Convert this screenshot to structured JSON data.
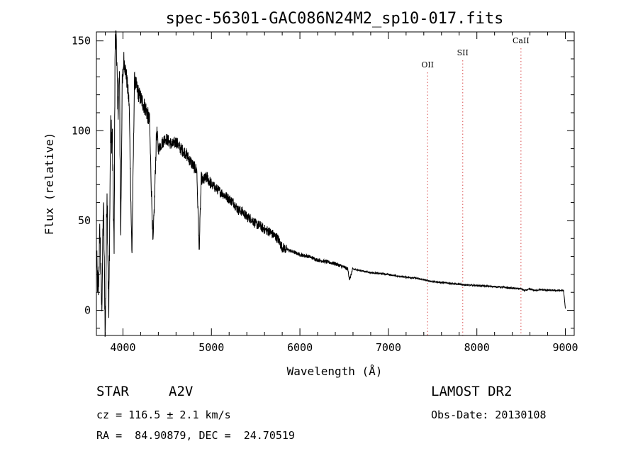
{
  "chart_data": {
    "type": "line",
    "title": "spec-56301-GAC086N24M2_sp10-017.fits",
    "xlabel": "Wavelength (Å)",
    "ylabel": "Flux (relative)",
    "xlim": [
      3700,
      9100
    ],
    "ylim": [
      -14,
      155
    ],
    "x_ticks": [
      "4000",
      "5000",
      "6000",
      "7000",
      "8000",
      "9000"
    ],
    "y_ticks": [
      "0",
      "50",
      "100",
      "150"
    ],
    "grid": false,
    "legend": "none",
    "series_color": "#000000",
    "marker_color": "#e06a6a",
    "spectral_lines": [
      {
        "name": "OII",
        "wavelength": 7443
      },
      {
        "name": "SII",
        "wavelength": 7840
      },
      {
        "name": "CaII",
        "wavelength": 8498
      }
    ],
    "spectrum_knots": [
      [
        3700,
        30
      ],
      [
        3720,
        8
      ],
      [
        3740,
        45
      ],
      [
        3760,
        0
      ],
      [
        3780,
        60
      ],
      [
        3800,
        -14
      ],
      [
        3820,
        70
      ],
      [
        3840,
        -5
      ],
      [
        3860,
        100
      ],
      [
        3880,
        95
      ],
      [
        3900,
        30
      ],
      [
        3910,
        145
      ],
      [
        3925,
        155
      ],
      [
        3940,
        110
      ],
      [
        3960,
        130
      ],
      [
        3975,
        40
      ],
      [
        3990,
        120
      ],
      [
        4010,
        140
      ],
      [
        4040,
        130
      ],
      [
        4070,
        115
      ],
      [
        4101,
        30
      ],
      [
        4130,
        128
      ],
      [
        4180,
        120
      ],
      [
        4220,
        116
      ],
      [
        4260,
        112
      ],
      [
        4300,
        105
      ],
      [
        4340,
        35
      ],
      [
        4380,
        100
      ],
      [
        4400,
        90
      ],
      [
        4440,
        93
      ],
      [
        4480,
        96
      ],
      [
        4520,
        94
      ],
      [
        4560,
        92
      ],
      [
        4600,
        94
      ],
      [
        4650,
        90
      ],
      [
        4700,
        88
      ],
      [
        4750,
        84
      ],
      [
        4800,
        80
      ],
      [
        4835,
        78
      ],
      [
        4861,
        32
      ],
      [
        4885,
        74
      ],
      [
        4900,
        72
      ],
      [
        4950,
        74
      ],
      [
        5000,
        70
      ],
      [
        5050,
        68
      ],
      [
        5100,
        66
      ],
      [
        5150,
        64
      ],
      [
        5200,
        62
      ],
      [
        5250,
        60
      ],
      [
        5300,
        56
      ],
      [
        5350,
        55
      ],
      [
        5400,
        52
      ],
      [
        5450,
        51
      ],
      [
        5500,
        48
      ],
      [
        5550,
        47
      ],
      [
        5600,
        45
      ],
      [
        5650,
        44
      ],
      [
        5700,
        42
      ],
      [
        5750,
        40
      ],
      [
        5800,
        35
      ],
      [
        5850,
        34
      ],
      [
        5900,
        33
      ],
      [
        6000,
        31
      ],
      [
        6100,
        30
      ],
      [
        6200,
        28
      ],
      [
        6300,
        27
      ],
      [
        6400,
        26
      ],
      [
        6500,
        24
      ],
      [
        6540,
        23
      ],
      [
        6563,
        17
      ],
      [
        6590,
        22
      ],
      [
        6600,
        23
      ],
      [
        6700,
        22
      ],
      [
        6800,
        21
      ],
      [
        6900,
        20.5
      ],
      [
        7000,
        20
      ],
      [
        7100,
        19
      ],
      [
        7200,
        18.5
      ],
      [
        7300,
        18
      ],
      [
        7400,
        17
      ],
      [
        7500,
        16
      ],
      [
        7600,
        15.5
      ],
      [
        7700,
        15
      ],
      [
        7800,
        14.5
      ],
      [
        7900,
        14
      ],
      [
        8000,
        13.8
      ],
      [
        8100,
        13.5
      ],
      [
        8200,
        13.2
      ],
      [
        8300,
        12.8
      ],
      [
        8400,
        12.3
      ],
      [
        8500,
        12
      ],
      [
        8542,
        11
      ],
      [
        8600,
        11.8
      ],
      [
        8662,
        11
      ],
      [
        8700,
        11.5
      ],
      [
        8800,
        11.2
      ],
      [
        8900,
        11
      ],
      [
        8950,
        11
      ],
      [
        8980,
        11
      ],
      [
        8990,
        6
      ],
      [
        9000,
        1
      ]
    ],
    "spectrum_bounds": [
      3700,
      9000
    ]
  },
  "info": {
    "obj_class": "STAR",
    "subclass": "A2V",
    "cz": "cz = 116.5 ± 2.1 km/s",
    "coords": "RA =  84.90879, DEC =  24.70519",
    "survey": "LAMOST DR2",
    "obs_date": "Obs-Date: 20130108"
  }
}
